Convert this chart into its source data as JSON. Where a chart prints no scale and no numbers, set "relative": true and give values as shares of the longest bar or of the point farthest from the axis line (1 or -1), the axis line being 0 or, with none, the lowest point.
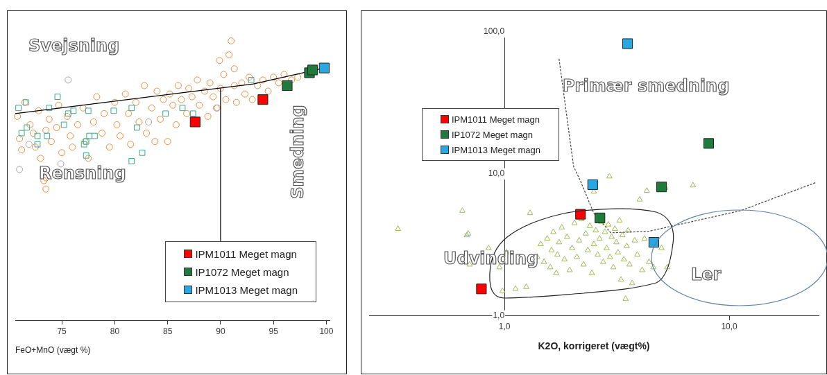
{
  "chart_data": [
    {
      "type": "scatter",
      "xlabel": "FeO+MnO (vægt %)",
      "relative": true,
      "xlim": [
        70.6,
        100.3
      ],
      "xticks": [
        75,
        80,
        85,
        90,
        95,
        100
      ],
      "tick_labels": "x",
      "legend": "bottom right",
      "annotations": [
        "Svejsning",
        "Rensning",
        "Smedning"
      ],
      "series": [
        {
          "color": "#f58b3c",
          "marker": "circle",
          "x": [
            70.8,
            71.0,
            71.2,
            71.5,
            72.0,
            72.3,
            72.5,
            72.8,
            73.0,
            73.3,
            73.5,
            73.8,
            74.0,
            74.5,
            74.7,
            75.0,
            75.5,
            75.8,
            76.0,
            76.5,
            77.0,
            77.2,
            77.5,
            78.0,
            78.3,
            78.8,
            79.0,
            79.5,
            80.0,
            80.2,
            80.5,
            81.0,
            81.3,
            81.5,
            82.0,
            82.3,
            82.8,
            83.0,
            83.5,
            83.8,
            84.0,
            84.3,
            84.6,
            85.0,
            85.2,
            85.5,
            85.8,
            86.0,
            86.3,
            86.8,
            87.0,
            87.3,
            87.8,
            88.0,
            88.5,
            88.8,
            89.0,
            89.3,
            89.7,
            89.9,
            90.0,
            90.3,
            90.5,
            90.8,
            91.0,
            91.3,
            91.3,
            91.5,
            92.0,
            92.3,
            92.7,
            93.0,
            93.5,
            94.0,
            94.5,
            95.0,
            95.5,
            96.0,
            96.7,
            97.3,
            73.5,
            73.5
          ],
          "values": [
            0.73,
            0.65,
            0.61,
            0.78,
            0.7,
            0.67,
            0.62,
            0.75,
            0.58,
            0.5,
            0.68,
            0.72,
            0.64,
            0.69,
            0.77,
            0.6,
            0.73,
            0.66,
            0.62,
            0.7,
            0.76,
            0.64,
            0.58,
            0.71,
            0.8,
            0.67,
            0.74,
            0.62,
            0.78,
            0.7,
            0.66,
            0.81,
            0.74,
            0.63,
            0.78,
            0.71,
            0.84,
            0.67,
            0.76,
            0.64,
            0.82,
            0.72,
            0.79,
            0.64,
            0.81,
            0.77,
            0.7,
            0.84,
            0.79,
            0.74,
            0.83,
            0.8,
            0.86,
            0.77,
            0.82,
            0.73,
            0.85,
            0.8,
            0.76,
            0.93,
            0.83,
            0.88,
            0.79,
            0.95,
            1.0,
            0.84,
            0.9,
            0.78,
            0.85,
            0.81,
            0.87,
            0.79,
            0.84,
            0.86,
            0.82,
            0.87,
            0.85,
            0.88,
            0.86,
            0.87,
            0.47,
            0.51
          ]
        },
        {
          "color": "#3aa68c",
          "marker": "square",
          "x": [
            70.9,
            71.6,
            74.6,
            73.8,
            71.7,
            71.2,
            72.7,
            73.6,
            72.7,
            75.2,
            75.6,
            76.1,
            77.5,
            77.6,
            77.3,
            77.1,
            77.3,
            78.1,
            79.9,
            81.6,
            82.1,
            81.6,
            82.6,
            84.8,
            86.4,
            87.4,
            92.9
          ],
          "values": [
            0.76,
            0.78,
            0.8,
            0.76,
            0.69,
            0.67,
            0.66,
            0.66,
            0.63,
            0.7,
            0.74,
            0.75,
            0.75,
            0.66,
            0.64,
            0.63,
            0.59,
            0.66,
            0.75,
            0.76,
            0.69,
            0.57,
            0.6,
            0.74,
            0.76,
            0.74,
            0.86
          ]
        },
        {
          "color": "#a6a6a6",
          "marker": "circle",
          "x": [
            75.6,
            71.0,
            74.9,
            71.9,
            83.2,
            89.6
          ],
          "values": [
            0.86,
            0.54,
            0.56,
            0.63,
            0.71,
            0.76
          ]
        },
        {
          "type": "line",
          "color": "#000000",
          "marker": "none",
          "line_style": "solid",
          "x": [
            70.6,
            93.1,
            99.8
          ],
          "values": [
            0.74,
            0.846,
            0.903
          ]
        },
        {
          "type": "line",
          "color": "#000000",
          "marker": "none",
          "line_style": "solid",
          "x": [
            90,
            90
          ],
          "values": [
            0.829,
            0.285
          ]
        },
        {
          "name": "IPM1011 Meget magn",
          "color": "#ff0000",
          "marker": "square",
          "x": [
            87.6,
            94.0
          ],
          "values": [
            0.71,
            0.79
          ]
        },
        {
          "name": "IP1072 Meget magn",
          "color": "#1e7b3c",
          "marker": "square",
          "x": [
            96.3,
            98.4,
            98.7
          ],
          "values": [
            0.84,
            0.886,
            0.896
          ]
        },
        {
          "name": "IPM1013 Meget magn",
          "color": "#2aa6e0",
          "marker": "square",
          "x": [
            99.8
          ],
          "values": [
            0.903
          ]
        }
      ]
    },
    {
      "type": "scatter",
      "xlabel": "K2O, korrigeret (vægt%)",
      "log": "xy",
      "xlim": [
        0.25,
        25
      ],
      "ylim": [
        1,
        100
      ],
      "xticks": [
        {
          "value": 1,
          "label": "1,0"
        },
        {
          "value": 10,
          "label": "10,0"
        }
      ],
      "yticks": [
        {
          "value": 1,
          "label": "1,0"
        },
        {
          "value": 10,
          "label": "10,0"
        },
        {
          "value": 100,
          "label": "100,0"
        }
      ],
      "legend": "left",
      "annotations": [
        "Primær smedning",
        "Udvinding",
        "Ler"
      ],
      "series": [
        {
          "color": "#9bbb59",
          "marker": "triangle",
          "x": [
            0.336,
            0.65,
            0.68,
            0.69,
            0.7,
            0.85,
            1.02,
            0.98,
            1.12,
            1.25,
            1.3,
            1.4,
            1.45,
            1.5,
            1.55,
            1.6,
            1.62,
            1.65,
            1.7,
            1.72,
            1.75,
            1.8,
            1.85,
            1.9,
            1.95,
            2.0,
            2.05,
            2.1,
            2.15,
            2.2,
            2.25,
            2.3,
            2.35,
            2.4,
            2.45,
            2.5,
            2.55,
            2.6,
            2.65,
            2.7,
            2.75,
            2.8,
            2.85,
            2.9,
            2.93,
            2.95,
            3.0,
            3.05,
            3.1,
            3.15,
            3.2,
            3.25,
            3.3,
            3.35,
            3.4,
            3.46,
            3.5,
            3.55,
            3.6,
            3.7,
            3.8,
            3.9,
            4.0,
            4.1,
            4.2,
            4.3,
            4.4,
            4.6,
            5.0,
            5.2,
            5.3,
            6.9,
            2.5,
            0.95
          ],
          "values": [
            4.1,
            5.5,
            3.7,
            3.8,
            2.3,
            3.0,
            2.8,
            1.5,
            1.55,
            1.6,
            5.3,
            2.6,
            3.2,
            2.4,
            3.5,
            2.2,
            2.9,
            3.9,
            2.0,
            2.7,
            3.3,
            4.2,
            2.5,
            3.6,
            2.1,
            3.0,
            4.5,
            2.6,
            3.4,
            4.8,
            2.3,
            3.8,
            2.9,
            4.3,
            2.0,
            3.2,
            4.0,
            2.7,
            3.5,
            4.6,
            2.4,
            3.9,
            3.0,
            4.4,
            9.6,
            2.6,
            3.6,
            2.2,
            4.1,
            3.3,
            2.8,
            4.7,
            1.8,
            3.7,
            2.5,
            1.32,
            3.1,
            4.0,
            2.3,
            1.7,
            3.4,
            2.7,
            6.6,
            2.1,
            3.5,
            7.6,
            2.4,
            2.2,
            3.0,
            8.0,
            2.2,
            8.3,
            7.5,
            2.2
          ]
        },
        {
          "type": "line",
          "color": "#404040",
          "marker": "none",
          "line_style": "dashed",
          "x": [
            1.75,
            2.03,
            2.18,
            2.5,
            2.97,
            4.37,
            11.2,
            24.3
          ],
          "values": [
            64.6,
            11.3,
            8.9,
            5.27,
            3.85,
            3.94,
            5.5,
            8.7
          ]
        },
        {
          "name": "IPM1011 Meget magn",
          "color": "#ff0000",
          "marker": "square",
          "x": [
            2.18,
            0.79
          ],
          "values": [
            5.2,
            1.55
          ]
        },
        {
          "name": "IP1072 Meget magn",
          "color": "#1e7b3c",
          "marker": "square",
          "x": [
            8.1,
            5.0,
            2.66
          ],
          "values": [
            16.4,
            8.1,
            4.9
          ]
        },
        {
          "name": "IPM1013 Meget magn",
          "color": "#2aa6e0",
          "marker": "square",
          "x": [
            3.53,
            2.47,
            4.62
          ],
          "values": [
            82.6,
            8.4,
            3.3
          ]
        }
      ]
    }
  ]
}
